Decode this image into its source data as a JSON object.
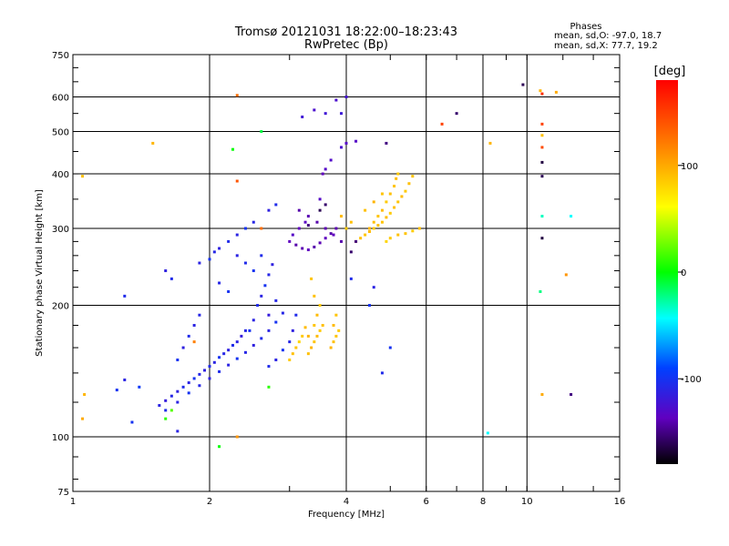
{
  "chart_data": {
    "type": "scatter",
    "title": "Tromsø 20121031 18:22:00–18:23:43",
    "subtitle": "RwPretec (Bp)",
    "xlabel": "Frequency [MHz]",
    "ylabel": "Stationary phase Virtual Height [km]",
    "x_scale": "log",
    "y_scale": "log",
    "xlim": [
      1,
      16
    ],
    "ylim": [
      75,
      750
    ],
    "x_ticks": [
      1,
      2,
      4,
      8,
      16
    ],
    "x_tick_labels": [
      "1",
      "2",
      "4",
      "6",
      "8",
      "10",
      "16"
    ],
    "x_tick_label_values": [
      1,
      2,
      4,
      6,
      8,
      10,
      16
    ],
    "x_grid": [
      2,
      4,
      6,
      8,
      10
    ],
    "y_tick_labels": [
      "75",
      "100",
      "200",
      "300",
      "400",
      "500",
      "600",
      "750"
    ],
    "y_tick_label_values": [
      75,
      100,
      200,
      300,
      400,
      500,
      600,
      750
    ],
    "y_grid": [
      100,
      200,
      300,
      400,
      500,
      600
    ],
    "grid": true,
    "legend": {
      "title": "Phases",
      "lines": [
        "mean, sd,O: -97.0, 18.7",
        "mean, sd,X:  77.7, 19.2"
      ],
      "placement": "top-right"
    },
    "colorbar": {
      "label": "[deg]",
      "range": [
        -180,
        180
      ],
      "tick_labels": [
        "100",
        "0",
        "-100"
      ],
      "tick_values": [
        100,
        0,
        -100
      ]
    },
    "series": [
      {
        "points": [
          [
            1.55,
            118,
            -110
          ],
          [
            1.6,
            121,
            -115
          ],
          [
            1.65,
            124,
            -108
          ],
          [
            1.7,
            127,
            -112
          ],
          [
            1.75,
            130,
            -105
          ],
          [
            1.8,
            133,
            -110
          ],
          [
            1.85,
            136,
            -100
          ],
          [
            1.9,
            139,
            -108
          ],
          [
            1.95,
            142,
            -112
          ],
          [
            2.0,
            145,
            -105
          ],
          [
            2.05,
            148,
            -110
          ],
          [
            2.1,
            152,
            -100
          ],
          [
            2.15,
            155,
            -108
          ],
          [
            2.2,
            158,
            -112
          ],
          [
            2.25,
            162,
            -105
          ],
          [
            2.3,
            165,
            -110
          ],
          [
            2.35,
            170,
            -115
          ],
          [
            2.4,
            175,
            -108
          ],
          [
            1.6,
            115,
            -105
          ],
          [
            1.7,
            120,
            -110
          ],
          [
            1.8,
            126,
            -100
          ],
          [
            1.9,
            131,
            -108
          ],
          [
            2.0,
            136,
            -112
          ],
          [
            2.1,
            141,
            -105
          ],
          [
            2.2,
            146,
            -110
          ],
          [
            2.3,
            151,
            -100
          ],
          [
            2.4,
            156,
            -108
          ],
          [
            2.5,
            162,
            -112
          ],
          [
            2.6,
            168,
            -105
          ],
          [
            2.7,
            175,
            -110
          ],
          [
            2.8,
            183,
            -100
          ],
          [
            2.9,
            192,
            -108
          ],
          [
            2.55,
            200,
            -105
          ],
          [
            2.6,
            210,
            -110
          ],
          [
            2.65,
            222,
            -100
          ],
          [
            2.7,
            235,
            -108
          ],
          [
            2.75,
            248,
            -112
          ],
          [
            2.6,
            260,
            -105
          ],
          [
            2.5,
            185,
            -110
          ],
          [
            2.45,
            175,
            -100
          ],
          [
            2.7,
            190,
            -115
          ],
          [
            2.8,
            205,
            -108
          ],
          [
            1.75,
            160,
            -112
          ],
          [
            1.8,
            170,
            -105
          ],
          [
            1.85,
            180,
            -110
          ],
          [
            1.7,
            150,
            -100
          ],
          [
            1.9,
            190,
            -108
          ],
          [
            1.6,
            240,
            -112
          ],
          [
            1.65,
            230,
            -105
          ],
          [
            1.9,
            250,
            -110
          ],
          [
            2.0,
            255,
            -100
          ],
          [
            2.05,
            265,
            -108
          ],
          [
            2.1,
            270,
            -112
          ],
          [
            2.2,
            280,
            -105
          ],
          [
            2.3,
            290,
            -110
          ],
          [
            2.4,
            300,
            -100
          ],
          [
            2.5,
            310,
            -108
          ],
          [
            2.7,
            330,
            -112
          ],
          [
            2.8,
            340,
            -105
          ],
          [
            3.0,
            280,
            -135
          ],
          [
            3.1,
            275,
            -140
          ],
          [
            3.2,
            270,
            -138
          ],
          [
            3.3,
            268,
            -135
          ],
          [
            3.4,
            272,
            -140
          ],
          [
            3.5,
            278,
            -138
          ],
          [
            3.6,
            285,
            -135
          ],
          [
            3.7,
            292,
            -140
          ],
          [
            3.8,
            300,
            -138
          ],
          [
            3.05,
            290,
            -130
          ],
          [
            3.15,
            300,
            -135
          ],
          [
            3.25,
            310,
            -132
          ],
          [
            3.5,
            350,
            -130
          ],
          [
            3.55,
            400,
            -135
          ],
          [
            3.6,
            410,
            -130
          ],
          [
            3.7,
            430,
            -128
          ],
          [
            3.9,
            460,
            -125
          ],
          [
            4.0,
            470,
            -130
          ],
          [
            3.2,
            540,
            -120
          ],
          [
            3.4,
            560,
            -125
          ],
          [
            3.6,
            550,
            -120
          ],
          [
            3.8,
            590,
            -125
          ],
          [
            3.9,
            550,
            -118
          ],
          [
            4.0,
            600,
            -122
          ],
          [
            3.15,
            330,
            -140
          ],
          [
            3.3,
            320,
            -138
          ],
          [
            3.45,
            310,
            -140
          ],
          [
            3.6,
            300,
            -138
          ],
          [
            3.75,
            290,
            -135
          ],
          [
            3.9,
            280,
            -140
          ],
          [
            1.3,
            210,
            -105
          ],
          [
            1.25,
            128,
            -100
          ],
          [
            1.3,
            135,
            -110
          ],
          [
            1.4,
            130,
            -95
          ],
          [
            1.35,
            108,
            -100
          ],
          [
            1.7,
            103,
            -110
          ],
          [
            2.7,
            145,
            -105
          ],
          [
            2.8,
            150,
            -110
          ],
          [
            2.9,
            158,
            -100
          ],
          [
            3.0,
            165,
            -108
          ],
          [
            3.05,
            175,
            -112
          ],
          [
            3.1,
            190,
            -105
          ],
          [
            2.5,
            240,
            -100
          ],
          [
            2.4,
            250,
            -105
          ],
          [
            2.3,
            260,
            -110
          ],
          [
            2.2,
            215,
            -100
          ],
          [
            2.1,
            225,
            -108
          ],
          [
            4.2,
            475,
            -130
          ],
          [
            5.0,
            160,
            -100
          ],
          [
            4.8,
            140,
            -105
          ],
          [
            4.5,
            200,
            -100
          ],
          [
            4.6,
            220,
            -110
          ],
          [
            4.1,
            230,
            -105
          ]
        ]
      },
      {
        "points": [
          [
            3.3,
            155,
            90
          ],
          [
            3.35,
            160,
            95
          ],
          [
            3.4,
            165,
            88
          ],
          [
            3.45,
            170,
            92
          ],
          [
            3.5,
            175,
            85
          ],
          [
            3.55,
            180,
            90
          ],
          [
            3.3,
            170,
            95
          ],
          [
            3.4,
            180,
            88
          ],
          [
            3.45,
            190,
            92
          ],
          [
            3.5,
            200,
            85
          ],
          [
            3.4,
            210,
            90
          ],
          [
            3.35,
            230,
            88
          ],
          [
            3.0,
            150,
            85
          ],
          [
            3.05,
            155,
            90
          ],
          [
            3.1,
            160,
            88
          ],
          [
            3.15,
            165,
            80
          ],
          [
            3.2,
            170,
            85
          ],
          [
            3.25,
            178,
            92
          ],
          [
            3.7,
            160,
            95
          ],
          [
            3.75,
            165,
            90
          ],
          [
            3.8,
            170,
            88
          ],
          [
            3.85,
            175,
            85
          ],
          [
            3.75,
            180,
            92
          ],
          [
            3.8,
            190,
            88
          ],
          [
            4.2,
            280,
            95
          ],
          [
            4.3,
            285,
            90
          ],
          [
            4.4,
            290,
            88
          ],
          [
            4.5,
            295,
            92
          ],
          [
            4.6,
            300,
            85
          ],
          [
            4.7,
            305,
            90
          ],
          [
            4.8,
            310,
            88
          ],
          [
            4.9,
            318,
            92
          ],
          [
            5.0,
            325,
            85
          ],
          [
            5.1,
            335,
            90
          ],
          [
            5.2,
            345,
            88
          ],
          [
            5.3,
            355,
            92
          ],
          [
            5.4,
            365,
            85
          ],
          [
            5.5,
            380,
            90
          ],
          [
            5.6,
            395,
            88
          ],
          [
            4.5,
            300,
            95
          ],
          [
            4.6,
            310,
            90
          ],
          [
            4.7,
            320,
            88
          ],
          [
            4.8,
            330,
            92
          ],
          [
            4.9,
            345,
            85
          ],
          [
            5.0,
            360,
            90
          ],
          [
            5.1,
            375,
            88
          ],
          [
            5.15,
            390,
            92
          ],
          [
            5.2,
            400,
            85
          ],
          [
            4.9,
            280,
            80
          ],
          [
            5.0,
            285,
            85
          ],
          [
            5.2,
            290,
            90
          ],
          [
            5.4,
            292,
            88
          ],
          [
            5.6,
            296,
            85
          ],
          [
            5.8,
            300,
            90
          ],
          [
            4.4,
            330,
            90
          ],
          [
            4.6,
            345,
            95
          ],
          [
            4.8,
            360,
            88
          ],
          [
            3.9,
            320,
            92
          ],
          [
            4.0,
            300,
            85
          ],
          [
            4.1,
            310,
            90
          ],
          [
            1.05,
            395,
            90
          ],
          [
            1.05,
            110,
            100
          ],
          [
            1.06,
            125,
            95
          ],
          [
            1.5,
            470,
            95
          ],
          [
            2.3,
            100,
            110
          ],
          [
            8.3,
            470,
            95
          ],
          [
            10.7,
            620,
            95
          ],
          [
            10.8,
            490,
            90
          ],
          [
            11.6,
            615,
            100
          ],
          [
            12.2,
            235,
            110
          ],
          [
            10.8,
            125,
            100
          ]
        ]
      },
      {
        "points": [
          [
            2.3,
            605,
            130
          ],
          [
            2.3,
            385,
            140
          ],
          [
            6.5,
            520,
            150
          ],
          [
            10.8,
            610,
            160
          ],
          [
            10.8,
            520,
            150
          ],
          [
            10.8,
            460,
            145
          ],
          [
            1.85,
            165,
            120
          ],
          [
            2.6,
            300,
            130
          ]
        ]
      },
      {
        "points": [
          [
            2.25,
            455,
            0
          ],
          [
            2.6,
            500,
            -10
          ],
          [
            1.6,
            110,
            10
          ],
          [
            1.65,
            115,
            20
          ],
          [
            10.8,
            320,
            -30
          ],
          [
            12.5,
            320,
            -40
          ],
          [
            8.2,
            102,
            -40
          ],
          [
            10.7,
            215,
            -20
          ],
          [
            2.1,
            95,
            0
          ],
          [
            2.7,
            130,
            10
          ]
        ]
      },
      {
        "points": [
          [
            9.8,
            640,
            -160
          ],
          [
            10.8,
            425,
            -165
          ],
          [
            10.8,
            395,
            -160
          ],
          [
            10.8,
            285,
            -165
          ],
          [
            12.5,
            125,
            -150
          ],
          [
            7.0,
            550,
            -155
          ],
          [
            4.9,
            470,
            -150
          ],
          [
            4.1,
            265,
            -155
          ],
          [
            4.2,
            280,
            -150
          ],
          [
            3.5,
            330,
            -160
          ],
          [
            3.6,
            340,
            -155
          ],
          [
            3.3,
            305,
            -150
          ]
        ]
      }
    ]
  }
}
